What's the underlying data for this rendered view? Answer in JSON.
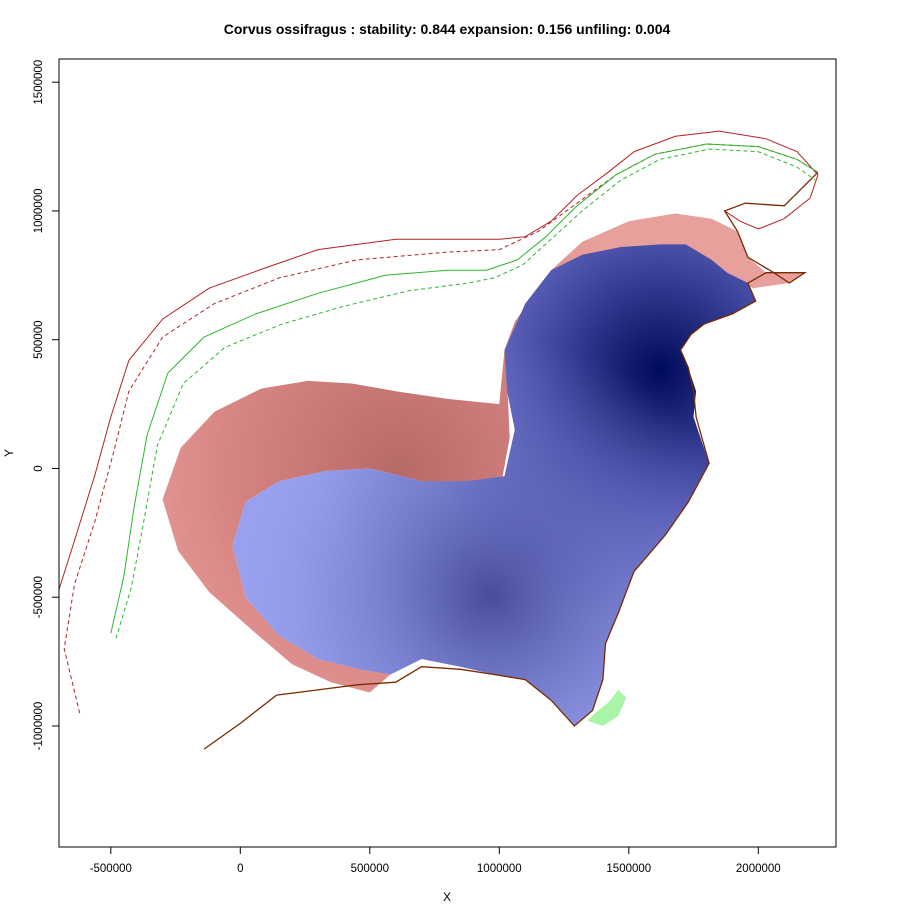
{
  "chart_data": {
    "type": "heatmap",
    "title": "Corvus ossifragus : stability: 0.844 expansion: 0.156 unfiling: 0.004",
    "stats": {
      "stability": 0.844,
      "expansion": 0.156,
      "unfilling": 0.004
    },
    "xlabel": "X",
    "ylabel": "Y",
    "xlim": [
      -700000,
      2300000
    ],
    "ylim": [
      -1470000,
      1590000
    ],
    "xticks": [
      -500000,
      0,
      500000,
      1000000,
      1500000,
      2000000
    ],
    "yticks": [
      -1000000,
      -500000,
      0,
      500000,
      1000000,
      1500000
    ],
    "colors": {
      "stability_dark": "#000a5a",
      "stability_light": "#9aa0f0",
      "expansion": "#e38a86",
      "unfilling": "#a8f5a8",
      "native_contour": "#b22222",
      "invaded_contour": "#2eb82e"
    },
    "regions": [
      {
        "name": "stability",
        "points": [
          [
            1020000,
            460000
          ],
          [
            1100000,
            640000
          ],
          [
            1200000,
            770000
          ],
          [
            1320000,
            830000
          ],
          [
            1470000,
            860000
          ],
          [
            1620000,
            870000
          ],
          [
            1720000,
            870000
          ],
          [
            1820000,
            810000
          ],
          [
            1880000,
            760000
          ],
          [
            1960000,
            720000
          ],
          [
            1990000,
            650000
          ],
          [
            1900000,
            600000
          ],
          [
            1790000,
            560000
          ],
          [
            1740000,
            520000
          ],
          [
            1700000,
            460000
          ],
          [
            1730000,
            390000
          ],
          [
            1760000,
            300000
          ],
          [
            1750000,
            200000
          ],
          [
            1810000,
            20000
          ],
          [
            1730000,
            -130000
          ],
          [
            1640000,
            -260000
          ],
          [
            1520000,
            -400000
          ],
          [
            1460000,
            -560000
          ],
          [
            1410000,
            -680000
          ],
          [
            1400000,
            -820000
          ],
          [
            1360000,
            -940000
          ],
          [
            1290000,
            -1000000
          ],
          [
            1200000,
            -900000
          ],
          [
            1100000,
            -820000
          ],
          [
            980000,
            -800000
          ],
          [
            850000,
            -770000
          ],
          [
            700000,
            -740000
          ],
          [
            580000,
            -800000
          ],
          [
            460000,
            -780000
          ],
          [
            300000,
            -740000
          ],
          [
            150000,
            -650000
          ],
          [
            20000,
            -500000
          ],
          [
            -30000,
            -300000
          ],
          [
            20000,
            -130000
          ],
          [
            150000,
            -50000
          ],
          [
            330000,
            -10000
          ],
          [
            500000,
            0
          ],
          [
            700000,
            -50000
          ],
          [
            870000,
            -50000
          ],
          [
            1020000,
            -30000
          ],
          [
            1060000,
            150000
          ],
          [
            1030000,
            300000
          ]
        ]
      },
      {
        "name": "expansion",
        "points": [
          [
            -300000,
            -120000
          ],
          [
            -230000,
            80000
          ],
          [
            -100000,
            220000
          ],
          [
            80000,
            310000
          ],
          [
            260000,
            340000
          ],
          [
            430000,
            330000
          ],
          [
            600000,
            300000
          ],
          [
            800000,
            270000
          ],
          [
            1000000,
            250000
          ],
          [
            1020000,
            460000
          ],
          [
            1060000,
            570000
          ],
          [
            1200000,
            770000
          ],
          [
            1320000,
            880000
          ],
          [
            1500000,
            960000
          ],
          [
            1680000,
            990000
          ],
          [
            1820000,
            970000
          ],
          [
            1920000,
            920000
          ],
          [
            1960000,
            820000
          ],
          [
            2030000,
            760000
          ],
          [
            2180000,
            760000
          ],
          [
            2120000,
            720000
          ],
          [
            1980000,
            700000
          ],
          [
            1880000,
            760000
          ],
          [
            1720000,
            860000
          ],
          [
            1500000,
            850000
          ],
          [
            1300000,
            800000
          ],
          [
            1180000,
            720000
          ],
          [
            1080000,
            560000
          ],
          [
            1030000,
            340000
          ],
          [
            1040000,
            120000
          ],
          [
            1000000,
            -100000
          ],
          [
            900000,
            -100000
          ],
          [
            700000,
            -50000
          ],
          [
            500000,
            0
          ],
          [
            330000,
            -10000
          ],
          [
            150000,
            -50000
          ],
          [
            20000,
            -130000
          ],
          [
            -30000,
            -300000
          ],
          [
            20000,
            -500000
          ],
          [
            150000,
            -650000
          ],
          [
            300000,
            -740000
          ],
          [
            460000,
            -780000
          ],
          [
            580000,
            -800000
          ],
          [
            500000,
            -870000
          ],
          [
            350000,
            -830000
          ],
          [
            200000,
            -760000
          ],
          [
            60000,
            -640000
          ],
          [
            -120000,
            -480000
          ],
          [
            -240000,
            -320000
          ]
        ]
      },
      {
        "name": "unfilling",
        "points": [
          [
            1340000,
            -980000
          ],
          [
            1400000,
            -1000000
          ],
          [
            1460000,
            -960000
          ],
          [
            1490000,
            -890000
          ],
          [
            1460000,
            -860000
          ],
          [
            1420000,
            -910000
          ],
          [
            1370000,
            -950000
          ]
        ]
      }
    ],
    "contours": [
      {
        "name": "native-outer",
        "style": "solid",
        "color": "#b22222",
        "points": [
          [
            -700000,
            -470000
          ],
          [
            -640000,
            -280000
          ],
          [
            -560000,
            -20000
          ],
          [
            -500000,
            200000
          ],
          [
            -430000,
            420000
          ],
          [
            -300000,
            580000
          ],
          [
            -120000,
            700000
          ],
          [
            100000,
            780000
          ],
          [
            300000,
            850000
          ],
          [
            600000,
            890000
          ],
          [
            1000000,
            890000
          ],
          [
            1100000,
            900000
          ],
          [
            1200000,
            960000
          ],
          [
            1300000,
            1060000
          ],
          [
            1420000,
            1150000
          ],
          [
            1520000,
            1230000
          ],
          [
            1680000,
            1290000
          ],
          [
            1850000,
            1310000
          ],
          [
            2030000,
            1280000
          ],
          [
            2150000,
            1230000
          ],
          [
            2230000,
            1140000
          ],
          [
            2200000,
            1050000
          ],
          [
            2100000,
            970000
          ],
          [
            2000000,
            930000
          ],
          [
            1930000,
            960000
          ],
          [
            1870000,
            1000000
          ]
        ]
      },
      {
        "name": "native-inner",
        "style": "dashed",
        "color": "#b22222",
        "points": [
          [
            -620000,
            -950000
          ],
          [
            -680000,
            -700000
          ],
          [
            -640000,
            -450000
          ],
          [
            -560000,
            -200000
          ],
          [
            -490000,
            60000
          ],
          [
            -430000,
            300000
          ],
          [
            -300000,
            510000
          ],
          [
            -100000,
            640000
          ],
          [
            150000,
            740000
          ],
          [
            450000,
            810000
          ],
          [
            800000,
            840000
          ],
          [
            1000000,
            850000
          ],
          [
            1150000,
            920000
          ],
          [
            1300000,
            1030000
          ],
          [
            1450000,
            1140000
          ],
          [
            1600000,
            1220000
          ],
          [
            1800000,
            1260000
          ],
          [
            2000000,
            1250000
          ],
          [
            2150000,
            1200000
          ],
          [
            2230000,
            1150000
          ]
        ]
      },
      {
        "name": "invaded-outer",
        "style": "solid",
        "color": "#2eb82e",
        "points": [
          [
            -500000,
            -640000
          ],
          [
            -450000,
            -420000
          ],
          [
            -410000,
            -150000
          ],
          [
            -360000,
            130000
          ],
          [
            -280000,
            370000
          ],
          [
            -140000,
            510000
          ],
          [
            60000,
            600000
          ],
          [
            300000,
            680000
          ],
          [
            560000,
            750000
          ],
          [
            800000,
            770000
          ],
          [
            950000,
            770000
          ],
          [
            1070000,
            810000
          ],
          [
            1180000,
            900000
          ],
          [
            1300000,
            1020000
          ],
          [
            1450000,
            1140000
          ],
          [
            1600000,
            1220000
          ],
          [
            1800000,
            1260000
          ],
          [
            2000000,
            1250000
          ],
          [
            2150000,
            1200000
          ],
          [
            2230000,
            1150000
          ]
        ]
      },
      {
        "name": "invaded-inner",
        "style": "dashed",
        "color": "#2eb82e",
        "points": [
          [
            -480000,
            -660000
          ],
          [
            -420000,
            -460000
          ],
          [
            -370000,
            -190000
          ],
          [
            -320000,
            90000
          ],
          [
            -220000,
            330000
          ],
          [
            -60000,
            470000
          ],
          [
            160000,
            560000
          ],
          [
            400000,
            630000
          ],
          [
            650000,
            690000
          ],
          [
            880000,
            720000
          ],
          [
            980000,
            740000
          ],
          [
            1090000,
            790000
          ],
          [
            1200000,
            890000
          ],
          [
            1320000,
            1000000
          ],
          [
            1470000,
            1120000
          ],
          [
            1620000,
            1200000
          ],
          [
            1810000,
            1240000
          ],
          [
            2000000,
            1230000
          ],
          [
            2150000,
            1170000
          ],
          [
            2220000,
            1120000
          ]
        ]
      },
      {
        "name": "coastline",
        "style": "solid",
        "color": "#7a2a00",
        "points": [
          [
            -140000,
            -1090000
          ],
          [
            0,
            -990000
          ],
          [
            140000,
            -880000
          ],
          [
            300000,
            -860000
          ],
          [
            450000,
            -840000
          ],
          [
            600000,
            -830000
          ],
          [
            700000,
            -770000
          ],
          [
            850000,
            -780000
          ],
          [
            980000,
            -800000
          ],
          [
            1100000,
            -820000
          ],
          [
            1200000,
            -900000
          ],
          [
            1290000,
            -1000000
          ],
          [
            1360000,
            -940000
          ],
          [
            1400000,
            -820000
          ],
          [
            1410000,
            -680000
          ],
          [
            1460000,
            -560000
          ],
          [
            1520000,
            -400000
          ],
          [
            1640000,
            -260000
          ],
          [
            1730000,
            -130000
          ],
          [
            1810000,
            20000
          ],
          [
            1760000,
            200000
          ],
          [
            1750000,
            300000
          ],
          [
            1730000,
            390000
          ],
          [
            1700000,
            460000
          ],
          [
            1740000,
            520000
          ],
          [
            1790000,
            560000
          ],
          [
            1900000,
            600000
          ],
          [
            1990000,
            650000
          ],
          [
            1960000,
            720000
          ],
          [
            2030000,
            760000
          ],
          [
            2180000,
            760000
          ],
          [
            2120000,
            720000
          ],
          [
            2060000,
            760000
          ],
          [
            1960000,
            820000
          ],
          [
            1920000,
            920000
          ],
          [
            1870000,
            1000000
          ],
          [
            1950000,
            1030000
          ],
          [
            2100000,
            1020000
          ],
          [
            2230000,
            1150000
          ]
        ]
      }
    ]
  }
}
